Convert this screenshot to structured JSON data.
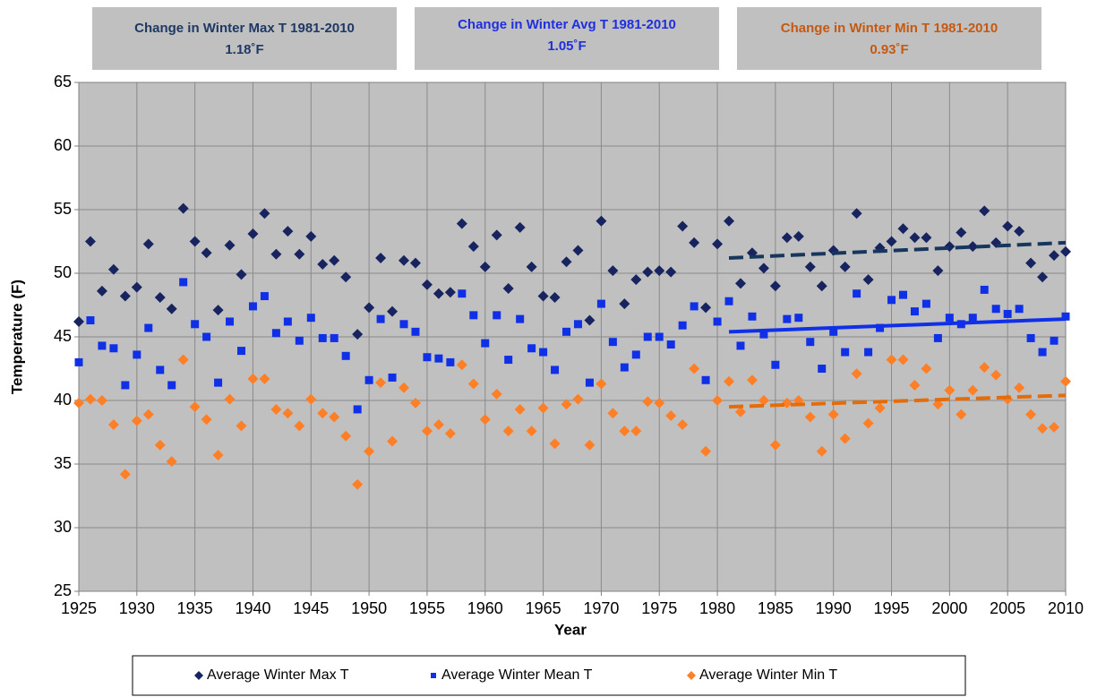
{
  "chart_data": {
    "type": "scatter",
    "xlabel": "Year",
    "ylabel": "Temperature (F)",
    "annotations": [
      {
        "text": "Change in Winter Max T 1981-2010",
        "value": "1.18˚F",
        "color": "#1f3864"
      },
      {
        "text": "Change in Winter Avg T 1981-2010",
        "value": "1.05˚F",
        "color": "#1f2fe0"
      },
      {
        "text": "Change in Winter Min T 1981-2010",
        "value": "0.93˚F",
        "color": "#c65911"
      }
    ],
    "xlim": [
      1925,
      2010
    ],
    "xticks": [
      1925,
      1930,
      1935,
      1940,
      1945,
      1950,
      1955,
      1960,
      1965,
      1970,
      1975,
      1980,
      1985,
      1990,
      1995,
      2000,
      2005,
      2010
    ],
    "ylim": [
      25,
      65
    ],
    "yticks": [
      25,
      30,
      35,
      40,
      45,
      50,
      55,
      60,
      65
    ],
    "grid": true,
    "legend": "bottom",
    "x": [
      1925,
      1926,
      1927,
      1928,
      1929,
      1930,
      1931,
      1932,
      1933,
      1934,
      1935,
      1936,
      1937,
      1938,
      1939,
      1940,
      1941,
      1942,
      1943,
      1944,
      1945,
      1946,
      1947,
      1948,
      1949,
      1950,
      1951,
      1952,
      1953,
      1954,
      1955,
      1956,
      1957,
      1958,
      1959,
      1960,
      1961,
      1962,
      1963,
      1964,
      1965,
      1966,
      1967,
      1968,
      1969,
      1970,
      1971,
      1972,
      1973,
      1974,
      1975,
      1976,
      1977,
      1978,
      1979,
      1980,
      1981,
      1982,
      1983,
      1984,
      1985,
      1986,
      1987,
      1988,
      1989,
      1990,
      1991,
      1992,
      1993,
      1994,
      1995,
      1996,
      1997,
      1998,
      1999,
      2000,
      2001,
      2002,
      2003,
      2004,
      2005,
      2006,
      2007,
      2008,
      2009,
      2010
    ],
    "series": [
      {
        "name": "Average Winter Max T",
        "color": "#17245f",
        "marker": "diamond",
        "values": [
          46.2,
          52.5,
          48.6,
          50.3,
          48.2,
          48.9,
          52.3,
          48.1,
          47.2,
          55.1,
          52.5,
          51.6,
          47.1,
          52.2,
          49.9,
          53.1,
          54.7,
          51.5,
          53.3,
          51.5,
          52.9,
          50.7,
          51.0,
          49.7,
          45.2,
          47.3,
          51.2,
          47.0,
          51.0,
          50.8,
          49.1,
          48.4,
          48.5,
          53.9,
          52.1,
          50.5,
          53.0,
          48.8,
          53.6,
          50.5,
          48.2,
          48.1,
          50.9,
          51.8,
          46.3,
          54.1,
          50.2,
          47.6,
          49.5,
          50.1,
          50.2,
          50.1,
          53.7,
          52.4,
          47.3,
          52.3,
          54.1,
          49.2,
          51.6,
          50.4,
          49.0,
          52.8,
          52.9,
          50.5,
          49.0,
          51.8,
          50.5,
          54.7,
          49.5,
          52.0,
          52.5,
          53.5,
          52.8,
          52.8,
          50.2,
          52.1,
          53.2,
          52.1,
          54.9,
          52.4,
          53.7,
          53.3,
          50.8,
          49.7,
          51.4,
          51.7
        ]
      },
      {
        "name": "Average Winter Mean T",
        "color": "#1030e8",
        "marker": "square",
        "values": [
          43.0,
          46.3,
          44.3,
          44.1,
          41.2,
          43.6,
          45.7,
          42.4,
          41.2,
          49.3,
          46.0,
          45.0,
          41.4,
          46.2,
          43.9,
          47.4,
          48.2,
          45.3,
          46.2,
          44.7,
          46.5,
          44.9,
          44.9,
          43.5,
          39.3,
          41.6,
          46.4,
          41.8,
          46.0,
          45.4,
          43.4,
          43.3,
          43.0,
          48.4,
          46.7,
          44.5,
          46.7,
          43.2,
          46.4,
          44.1,
          43.8,
          42.4,
          45.4,
          46.0,
          41.4,
          47.6,
          44.6,
          42.6,
          43.6,
          45.0,
          45.0,
          44.4,
          45.9,
          47.4,
          41.6,
          46.2,
          47.8,
          44.3,
          46.6,
          45.2,
          42.8,
          46.4,
          46.5,
          44.6,
          42.5,
          45.4,
          43.8,
          48.4,
          43.8,
          45.7,
          47.9,
          48.3,
          47.0,
          47.6,
          44.9,
          46.5,
          46.0,
          46.5,
          48.7,
          47.2,
          46.8,
          47.2,
          44.9,
          43.8,
          44.7,
          46.6
        ]
      },
      {
        "name": "Average Winter Min T",
        "color": "#ff7f27",
        "marker": "diamond",
        "values": [
          39.8,
          40.1,
          40.0,
          38.1,
          34.2,
          38.4,
          38.9,
          36.5,
          35.2,
          43.2,
          39.5,
          38.5,
          35.7,
          40.1,
          38.0,
          41.7,
          41.7,
          39.3,
          39.0,
          38.0,
          40.1,
          39.0,
          38.7,
          37.2,
          33.4,
          36.0,
          41.4,
          36.8,
          41.0,
          39.8,
          37.6,
          38.1,
          37.4,
          42.8,
          41.3,
          38.5,
          40.5,
          37.6,
          39.3,
          37.6,
          39.4,
          36.6,
          39.7,
          40.1,
          36.5,
          41.3,
          39.0,
          37.6,
          37.6,
          39.9,
          39.8,
          38.8,
          38.1,
          42.5,
          36.0,
          40.0,
          41.5,
          39.1,
          41.6,
          40.0,
          36.5,
          39.8,
          40.0,
          38.7,
          36.0,
          38.9,
          37.0,
          42.1,
          38.2,
          39.4,
          43.2,
          43.2,
          41.2,
          42.5,
          39.7,
          40.8,
          38.9,
          40.8,
          42.6,
          42.0,
          40.1,
          41.0,
          38.9,
          37.8,
          37.9,
          41.5
        ]
      }
    ],
    "trendlines": [
      {
        "color": "#17365d",
        "dashed": true,
        "x": [
          1981,
          2010
        ],
        "values": [
          51.2,
          52.4
        ]
      },
      {
        "color": "#1030e8",
        "dashed": false,
        "x": [
          1981,
          2010
        ],
        "values": [
          45.4,
          46.4
        ]
      },
      {
        "color": "#e46c0a",
        "dashed": true,
        "x": [
          1981,
          2010
        ],
        "values": [
          39.5,
          40.4
        ]
      }
    ]
  }
}
